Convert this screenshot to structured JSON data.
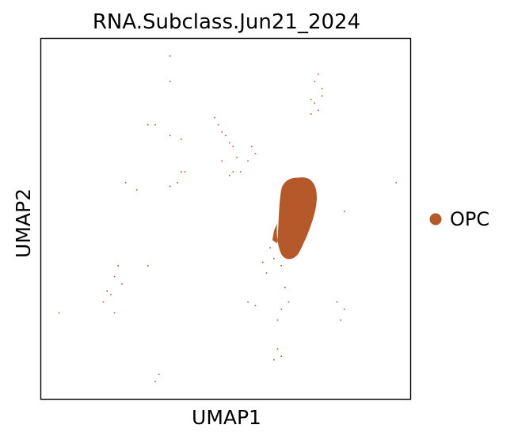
{
  "chart_data": {
    "type": "scatter",
    "title": "RNA.Subclass.Jun21_2024",
    "xlabel": "UMAP1",
    "ylabel": "UMAP2",
    "xticks": [],
    "yticks": [],
    "grid": false,
    "legend_position": "right",
    "legend": [
      {
        "label": "OPC",
        "color": "#b5582a"
      }
    ],
    "series": [
      {
        "name": "OPC",
        "color": "#b5582a",
        "main_cluster": {
          "center": [
            0.69,
            0.5
          ],
          "shape": "dense blob"
        },
        "points": [
          [
            0.35,
            0.95
          ],
          [
            0.35,
            0.88
          ],
          [
            0.29,
            0.76
          ],
          [
            0.31,
            0.76
          ],
          [
            0.35,
            0.73
          ],
          [
            0.38,
            0.72
          ],
          [
            0.47,
            0.78
          ],
          [
            0.48,
            0.76
          ],
          [
            0.49,
            0.74
          ],
          [
            0.5,
            0.73
          ],
          [
            0.51,
            0.71
          ],
          [
            0.52,
            0.7
          ],
          [
            0.53,
            0.67
          ],
          [
            0.54,
            0.63
          ],
          [
            0.57,
            0.7
          ],
          [
            0.56,
            0.66
          ],
          [
            0.58,
            0.68
          ],
          [
            0.49,
            0.66
          ],
          [
            0.51,
            0.62
          ],
          [
            0.52,
            0.63
          ],
          [
            0.38,
            0.63
          ],
          [
            0.39,
            0.63
          ],
          [
            0.37,
            0.6
          ],
          [
            0.35,
            0.59
          ],
          [
            0.26,
            0.58
          ],
          [
            0.23,
            0.6
          ],
          [
            0.74,
            0.88
          ],
          [
            0.75,
            0.9
          ],
          [
            0.76,
            0.86
          ],
          [
            0.74,
            0.82
          ],
          [
            0.75,
            0.8
          ],
          [
            0.73,
            0.79
          ],
          [
            0.76,
            0.84
          ],
          [
            0.73,
            0.83
          ],
          [
            0.96,
            0.6
          ],
          [
            0.82,
            0.52
          ],
          [
            0.21,
            0.37
          ],
          [
            0.2,
            0.34
          ],
          [
            0.22,
            0.32
          ],
          [
            0.19,
            0.29
          ],
          [
            0.18,
            0.3
          ],
          [
            0.17,
            0.27
          ],
          [
            0.2,
            0.24
          ],
          [
            0.05,
            0.24
          ],
          [
            0.29,
            0.37
          ],
          [
            0.6,
            0.38
          ],
          [
            0.61,
            0.35
          ],
          [
            0.63,
            0.39
          ],
          [
            0.65,
            0.37
          ],
          [
            0.62,
            0.42
          ],
          [
            0.64,
            0.44
          ],
          [
            0.66,
            0.31
          ],
          [
            0.56,
            0.27
          ],
          [
            0.58,
            0.26
          ],
          [
            0.65,
            0.25
          ],
          [
            0.67,
            0.27
          ],
          [
            0.64,
            0.22
          ],
          [
            0.8,
            0.27
          ],
          [
            0.82,
            0.25
          ],
          [
            0.81,
            0.22
          ],
          [
            0.64,
            0.14
          ],
          [
            0.65,
            0.12
          ],
          [
            0.63,
            0.11
          ],
          [
            0.32,
            0.07
          ],
          [
            0.31,
            0.05
          ],
          [
            0.66,
            0.53
          ],
          [
            0.67,
            0.47
          ],
          [
            0.68,
            0.45
          ],
          [
            0.65,
            0.46
          ],
          [
            0.69,
            0.44
          ]
        ]
      }
    ]
  }
}
